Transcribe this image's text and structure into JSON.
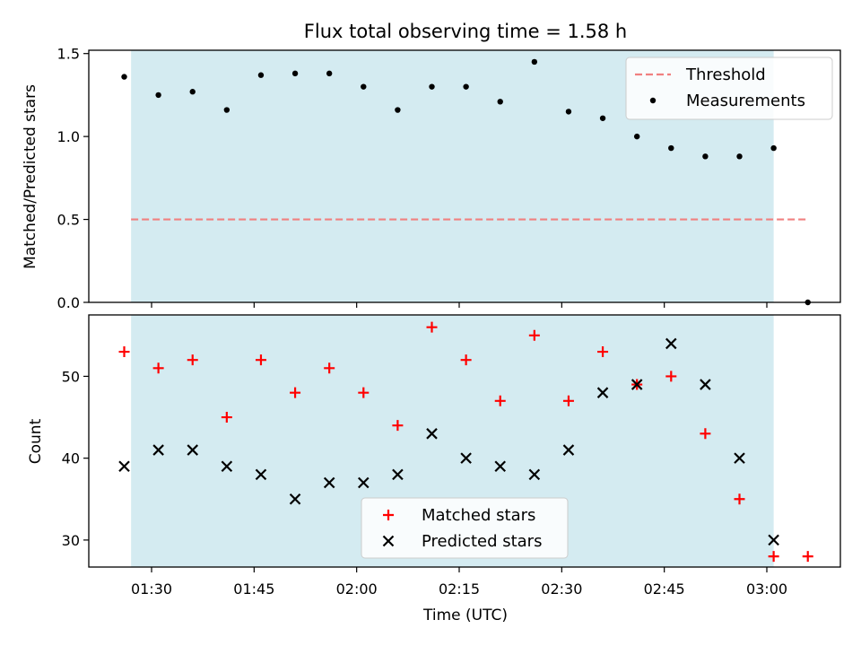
{
  "chart_data": [
    {
      "type": "scatter",
      "title": "Flux total observing time = 1.58 h",
      "ylabel": "Matched/Predicted stars",
      "xlabel": "",
      "x_ticks": [
        "01:30",
        "01:45",
        "02:00",
        "02:15",
        "02:30",
        "02:45",
        "03:00"
      ],
      "y_ticks": [
        "0.0",
        "0.5",
        "1.0",
        "1.5"
      ],
      "ylim": [
        0,
        1.52
      ],
      "legend_position": "top-right",
      "shaded_span": [
        "01:27",
        "03:01"
      ],
      "shade_color": "#d4ebf1",
      "series": [
        {
          "name": "Threshold",
          "kind": "dashed-line",
          "color": "#f08080",
          "x": [
            "01:27",
            "03:06"
          ],
          "values": [
            0.5,
            0.5
          ]
        },
        {
          "name": "Measurements",
          "kind": "dot",
          "color": "#000000",
          "x": [
            "01:26",
            "01:31",
            "01:36",
            "01:41",
            "01:46",
            "01:51",
            "01:56",
            "02:01",
            "02:06",
            "02:11",
            "02:16",
            "02:21",
            "02:26",
            "02:31",
            "02:36",
            "02:41",
            "02:46",
            "02:51",
            "02:56",
            "03:01",
            "03:06"
          ],
          "values": [
            1.36,
            1.25,
            1.27,
            1.16,
            1.37,
            1.38,
            1.38,
            1.3,
            1.16,
            1.3,
            1.3,
            1.21,
            1.45,
            1.15,
            1.11,
            1.0,
            0.93,
            0.88,
            0.88,
            0.93,
            0.0
          ]
        }
      ]
    },
    {
      "type": "scatter",
      "title": "",
      "ylabel": "Count",
      "xlabel": "Time (UTC)",
      "x_ticks": [
        "01:30",
        "01:45",
        "02:00",
        "02:15",
        "02:30",
        "02:45",
        "03:00"
      ],
      "y_ticks": [
        "30",
        "40",
        "50"
      ],
      "ylim": [
        26.7,
        57.5
      ],
      "legend_position": "bottom-center",
      "shaded_span": [
        "01:27",
        "03:01"
      ],
      "shade_color": "#d4ebf1",
      "series": [
        {
          "name": "Matched stars",
          "kind": "plus",
          "color": "#ff0000",
          "x": [
            "01:26",
            "01:31",
            "01:36",
            "01:41",
            "01:46",
            "01:51",
            "01:56",
            "02:01",
            "02:06",
            "02:11",
            "02:16",
            "02:21",
            "02:26",
            "02:31",
            "02:36",
            "02:41",
            "02:46",
            "02:51",
            "02:56",
            "03:01",
            "03:06"
          ],
          "values": [
            53,
            51,
            52,
            45,
            52,
            48,
            51,
            48,
            44,
            56,
            52,
            47,
            55,
            47,
            53,
            49,
            50,
            43,
            35,
            28,
            28
          ]
        },
        {
          "name": "Predicted stars",
          "kind": "cross",
          "color": "#000000",
          "x": [
            "01:26",
            "01:31",
            "01:36",
            "01:41",
            "01:46",
            "01:51",
            "01:56",
            "02:01",
            "02:06",
            "02:11",
            "02:16",
            "02:21",
            "02:26",
            "02:31",
            "02:36",
            "02:41",
            "02:46",
            "02:51",
            "02:56",
            "03:01"
          ],
          "values": [
            39,
            41,
            41,
            39,
            38,
            35,
            37,
            37,
            38,
            43,
            40,
            39,
            38,
            41,
            48,
            49,
            54,
            49,
            40,
            30
          ]
        }
      ]
    }
  ]
}
